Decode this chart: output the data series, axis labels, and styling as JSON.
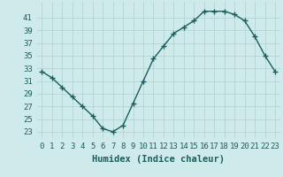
{
  "x": [
    0,
    1,
    2,
    3,
    4,
    5,
    6,
    7,
    8,
    9,
    10,
    11,
    12,
    13,
    14,
    15,
    16,
    17,
    18,
    19,
    20,
    21,
    22,
    23
  ],
  "y": [
    32.5,
    31.5,
    30.0,
    28.5,
    27.0,
    25.5,
    23.5,
    23.0,
    24.0,
    27.5,
    31.0,
    34.5,
    36.5,
    38.5,
    39.5,
    40.5,
    42.0,
    42.0,
    42.0,
    41.5,
    40.5,
    38.0,
    35.0,
    32.5
  ],
  "line_color": "#1a5f5f",
  "marker": "+",
  "markersize": 4,
  "linewidth": 1.0,
  "bg_color": "#ceeaea",
  "grid_color": "#b0cfcf",
  "xlabel": "Humidex (Indice chaleur)",
  "ylabel_ticks": [
    23,
    25,
    27,
    29,
    31,
    33,
    35,
    37,
    39,
    41
  ],
  "xlim": [
    -0.5,
    23.5
  ],
  "ylim": [
    22.0,
    43.5
  ],
  "xlabel_fontsize": 7.5,
  "tick_fontsize": 6.5,
  "tick_color": "#1a5f5f"
}
